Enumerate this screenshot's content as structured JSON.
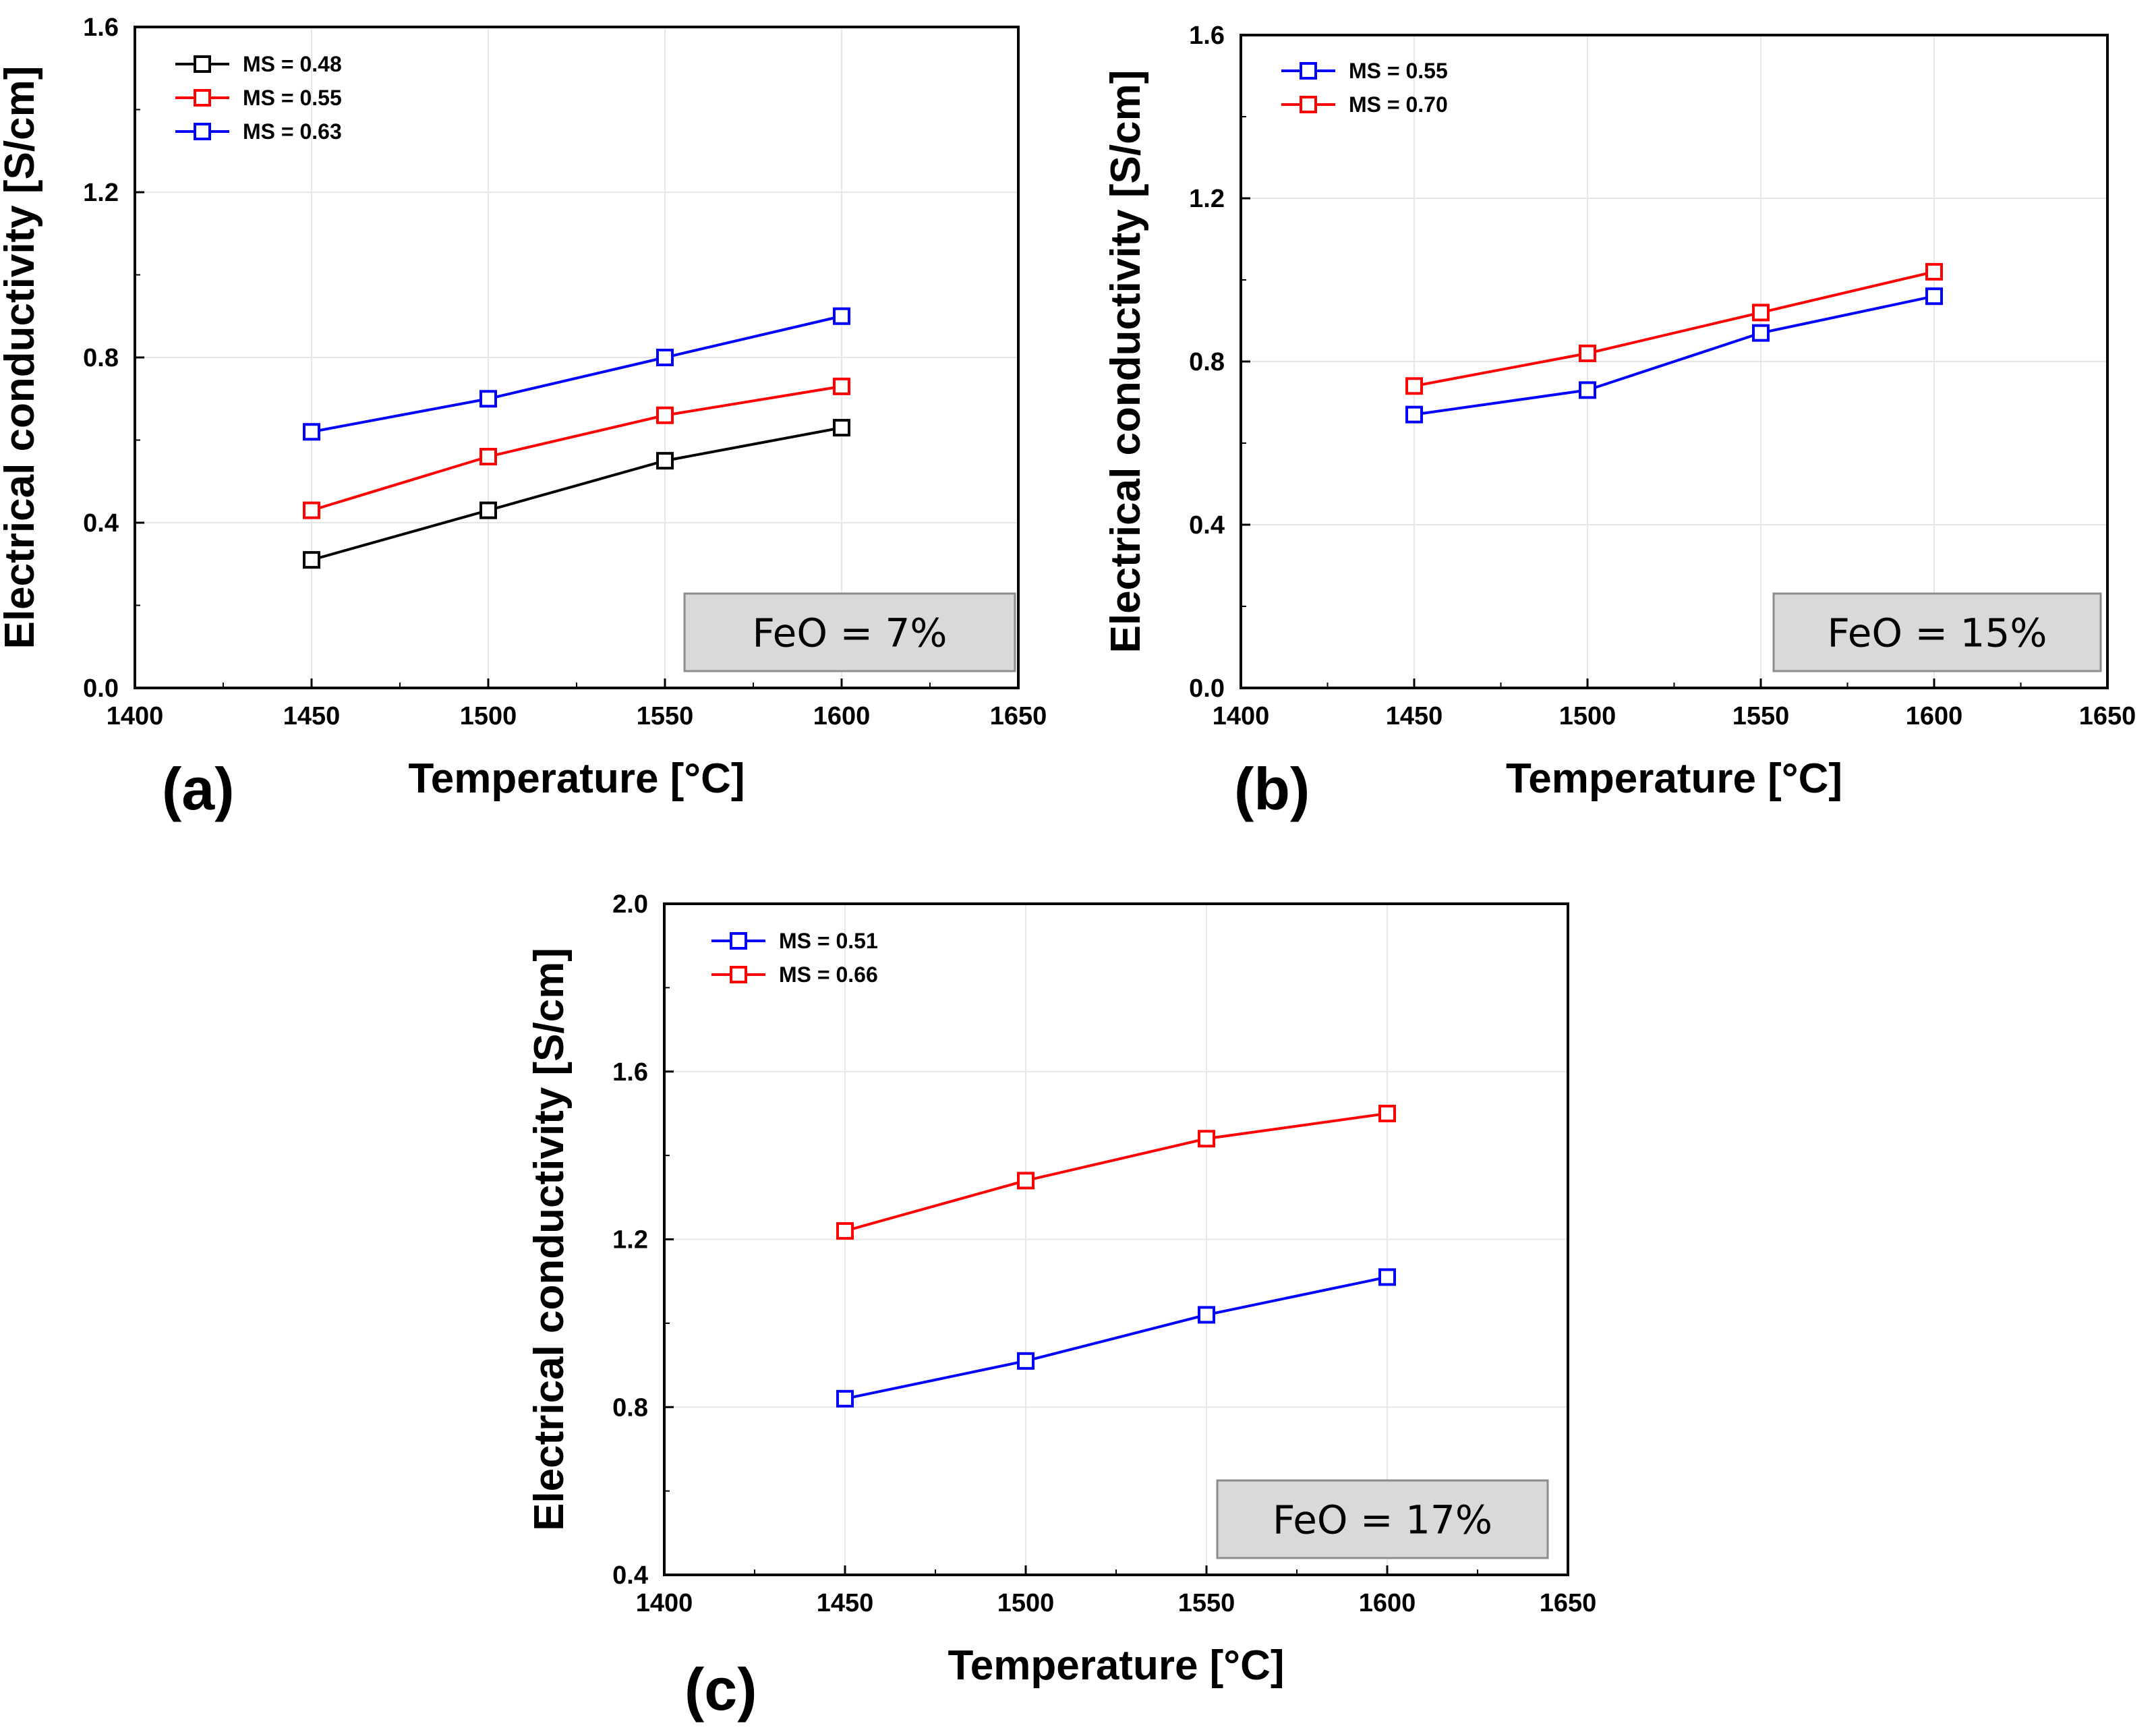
{
  "chart_data": [
    {
      "id": "a",
      "type": "line",
      "panel_label": "(a)",
      "title": "",
      "xlabel": "Temperature [°C]",
      "ylabel": "Electrical conductivity [S/cm]",
      "xlim": [
        1400,
        1650
      ],
      "ylim": [
        0.0,
        1.6
      ],
      "xticks": [
        1400,
        1450,
        1500,
        1550,
        1600,
        1650
      ],
      "yticks": [
        0.0,
        0.4,
        0.8,
        1.2,
        1.6
      ],
      "ytick_labels": [
        "0.0",
        "0.4",
        "0.8",
        "1.2",
        "1.6"
      ],
      "x": [
        1450,
        1500,
        1550,
        1600
      ],
      "legend_position": "top-left",
      "annotation": "FeO = 7%",
      "series": [
        {
          "name": "MS = 0.48",
          "color": "#000000",
          "values": [
            0.31,
            0.43,
            0.55,
            0.63
          ]
        },
        {
          "name": "MS = 0.55",
          "color": "#ff0000",
          "values": [
            0.43,
            0.56,
            0.66,
            0.73
          ]
        },
        {
          "name": "MS = 0.63",
          "color": "#0000ff",
          "values": [
            0.62,
            0.7,
            0.8,
            0.9
          ]
        }
      ]
    },
    {
      "id": "b",
      "type": "line",
      "panel_label": "(b)",
      "title": "",
      "xlabel": "Temperature [°C]",
      "ylabel": "Electrical conductivity [S/cm]",
      "xlim": [
        1400,
        1650
      ],
      "ylim": [
        0.0,
        1.6
      ],
      "xticks": [
        1400,
        1450,
        1500,
        1550,
        1600,
        1650
      ],
      "yticks": [
        0.0,
        0.4,
        0.8,
        1.2,
        1.6
      ],
      "ytick_labels": [
        "0.0",
        "0.4",
        "0.8",
        "1.2",
        "1.6"
      ],
      "x": [
        1450,
        1500,
        1550,
        1600
      ],
      "legend_position": "top-left",
      "annotation": "FeO = 15%",
      "series": [
        {
          "name": "MS = 0.55",
          "color": "#0000ff",
          "values": [
            0.67,
            0.73,
            0.87,
            0.96
          ]
        },
        {
          "name": "MS = 0.70",
          "color": "#ff0000",
          "values": [
            0.74,
            0.82,
            0.92,
            1.02
          ]
        }
      ]
    },
    {
      "id": "c",
      "type": "line",
      "panel_label": "(c)",
      "title": "",
      "xlabel": "Temperature [°C]",
      "ylabel": "Electrical conductivity [S/cm]",
      "xlim": [
        1400,
        1650
      ],
      "ylim": [
        0.4,
        2.0
      ],
      "xticks": [
        1400,
        1450,
        1500,
        1550,
        1600,
        1650
      ],
      "yticks": [
        0.4,
        0.8,
        1.2,
        1.6,
        2.0
      ],
      "ytick_labels": [
        "0.4",
        "0.8",
        "1.2",
        "1.6",
        "2.0"
      ],
      "x": [
        1450,
        1500,
        1550,
        1600
      ],
      "legend_position": "top-left",
      "annotation": "FeO = 17%",
      "series": [
        {
          "name": "MS = 0.51",
          "color": "#0000ff",
          "values": [
            0.82,
            0.91,
            1.02,
            1.11
          ]
        },
        {
          "name": "MS = 0.66",
          "color": "#ff0000",
          "values": [
            1.22,
            1.34,
            1.44,
            1.5
          ]
        }
      ]
    }
  ]
}
